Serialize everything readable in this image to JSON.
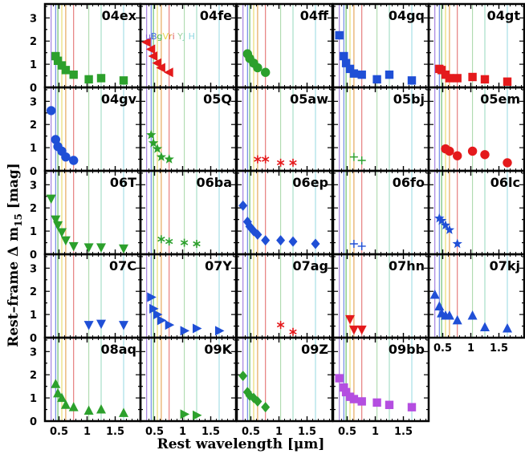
{
  "chart_data": {
    "type": "scatter",
    "title": "",
    "xlabel": "Rest wavelength [μm]",
    "ylabel": "Rest–frame Δ m15 [mag]",
    "ylabel_parts": {
      "main": "Rest–frame Δ m",
      "sub": "15",
      "unit": " [mag]"
    },
    "xlim": [
      0.25,
      1.95
    ],
    "ylim": [
      0,
      3.6
    ],
    "xticks": [
      0.5,
      1.0,
      1.5
    ],
    "xtick_labels": [
      "0.5",
      "1",
      "1.5"
    ],
    "xtick_small": [
      0.4,
      0.6,
      0.7,
      0.8,
      0.9,
      1.1,
      1.2,
      1.3,
      1.4,
      1.6,
      1.7,
      1.8,
      1.9
    ],
    "yticks": [
      0,
      1,
      2,
      3
    ],
    "ytick_labels": [
      "0",
      "1",
      "2",
      "3"
    ],
    "bands": [
      {
        "name": "u",
        "wavelength": 0.36,
        "color": "#8a5cd6"
      },
      {
        "name": "B",
        "wavelength": 0.44,
        "color": "#4b6ae0"
      },
      {
        "name": "g",
        "wavelength": 0.48,
        "color": "#45b04a"
      },
      {
        "name": "V",
        "wavelength": 0.55,
        "color": "#e5d24a"
      },
      {
        "name": "r",
        "wavelength": 0.62,
        "color": "#e0902e"
      },
      {
        "name": "i",
        "wavelength": 0.76,
        "color": "#e05b5b"
      },
      {
        "name": "Y",
        "wavelength": 1.03,
        "color": "#9fd39f"
      },
      {
        "name": "J",
        "wavelength": 1.25,
        "color": "#8fd6b8"
      },
      {
        "name": "H",
        "wavelength": 1.65,
        "color": "#8fd8e0"
      }
    ],
    "band_label_text": "uBgVri   YJ   H",
    "panels": [
      {
        "name": "04ex",
        "color": "#2ca02c",
        "marker": "square",
        "x": [
          0.36,
          0.44,
          0.48,
          0.55,
          0.62,
          0.76,
          1.03,
          1.25,
          1.65
        ],
        "y": [
          null,
          1.35,
          1.15,
          0.95,
          0.75,
          0.55,
          0.35,
          0.4,
          0.3
        ]
      },
      {
        "name": "04fe",
        "color": "#e41a1c",
        "marker": "triangle-left",
        "x": [
          0.36,
          0.44,
          0.48,
          0.55,
          0.62,
          0.76
        ],
        "y": [
          1.95,
          1.65,
          1.35,
          1.05,
          0.85,
          0.65
        ]
      },
      {
        "name": "04ff",
        "color": "#2ca02c",
        "marker": "circle",
        "x": [
          0.44,
          0.48,
          0.55,
          0.62,
          0.76
        ],
        "y": [
          1.45,
          1.25,
          1.05,
          0.85,
          0.65
        ]
      },
      {
        "name": "04gq",
        "color": "#1f4fd6",
        "marker": "square",
        "x": [
          0.36,
          0.44,
          0.48,
          0.55,
          0.62,
          0.76,
          1.03,
          1.25,
          1.65
        ],
        "y": [
          2.25,
          1.35,
          1.05,
          0.8,
          0.6,
          0.55,
          0.35,
          0.55,
          0.3
        ]
      },
      {
        "name": "04gt",
        "color": "#e41a1c",
        "marker": "square",
        "x": [
          0.44,
          0.48,
          0.55,
          0.62,
          0.76,
          1.03,
          1.25,
          1.65
        ],
        "y": [
          0.8,
          0.75,
          0.55,
          0.4,
          0.4,
          0.45,
          0.35,
          0.25
        ]
      },
      {
        "name": "04gv",
        "color": "#1f4fd6",
        "marker": "circle",
        "x": [
          0.36,
          0.44,
          0.48,
          0.55,
          0.62,
          0.76
        ],
        "y": [
          2.6,
          1.35,
          1.05,
          0.85,
          0.6,
          0.45
        ]
      },
      {
        "name": "05Q",
        "color": "#2ca02c",
        "marker": "star",
        "x": [
          0.44,
          0.48,
          0.55,
          0.62,
          0.76
        ],
        "y": [
          1.55,
          1.2,
          0.95,
          0.6,
          0.5
        ]
      },
      {
        "name": "05aw",
        "color": "#e41a1c",
        "marker": "asterisk",
        "x": [
          0.62,
          0.76,
          1.03,
          1.25
        ],
        "y": [
          0.5,
          0.5,
          0.35,
          0.35
        ]
      },
      {
        "name": "05bj",
        "color": "#2ca02c",
        "marker": "plus",
        "x": [
          0.62,
          0.76
        ],
        "y": [
          0.6,
          0.45
        ]
      },
      {
        "name": "05em",
        "color": "#e41a1c",
        "marker": "circle",
        "x": [
          0.55,
          0.62,
          0.76,
          1.03,
          1.25,
          1.65
        ],
        "y": [
          0.95,
          0.85,
          0.65,
          0.85,
          0.7,
          0.35
        ]
      },
      {
        "name": "06T",
        "color": "#2ca02c",
        "marker": "triangle-down",
        "x": [
          0.36,
          0.44,
          0.48,
          0.55,
          0.62,
          0.76,
          1.03,
          1.25,
          1.65
        ],
        "y": [
          2.4,
          1.5,
          1.25,
          0.95,
          0.6,
          0.35,
          0.3,
          0.3,
          0.25
        ]
      },
      {
        "name": "06ba",
        "color": "#2ca02c",
        "marker": "asterisk",
        "x": [
          0.62,
          0.76,
          1.03,
          1.25
        ],
        "y": [
          0.65,
          0.55,
          0.5,
          0.45
        ]
      },
      {
        "name": "06ep",
        "color": "#1f4fd6",
        "marker": "diamond",
        "x": [
          0.36,
          0.44,
          0.48,
          0.55,
          0.62,
          0.76,
          1.03,
          1.25,
          1.65
        ],
        "y": [
          2.1,
          1.4,
          1.2,
          1.0,
          0.85,
          0.6,
          0.6,
          0.55,
          0.45
        ]
      },
      {
        "name": "06fo",
        "color": "#1f4fd6",
        "marker": "plus",
        "x": [
          0.62,
          0.76
        ],
        "y": [
          0.45,
          0.35
        ]
      },
      {
        "name": "06lc",
        "color": "#1f4fd6",
        "marker": "star",
        "x": [
          0.44,
          0.48,
          0.55,
          0.62,
          0.76
        ],
        "y": [
          1.55,
          1.45,
          1.25,
          1.05,
          0.45
        ]
      },
      {
        "name": "07C",
        "color": "#1f4fd6",
        "marker": "triangle-down",
        "x": [
          1.03,
          1.25,
          1.65
        ],
        "y": [
          0.55,
          0.6,
          0.55
        ]
      },
      {
        "name": "07Y",
        "color": "#1f4fd6",
        "marker": "triangle-right",
        "x": [
          0.44,
          0.48,
          0.55,
          0.62,
          0.76,
          1.03,
          1.25,
          1.65
        ],
        "y": [
          1.75,
          1.25,
          1.0,
          0.75,
          0.55,
          0.3,
          0.4,
          0.3
        ]
      },
      {
        "name": "07ag",
        "color": "#e41a1c",
        "marker": "asterisk",
        "x": [
          1.03,
          1.25
        ],
        "y": [
          0.55,
          0.25
        ]
      },
      {
        "name": "07hn",
        "color": "#e41a1c",
        "marker": "triangle-down",
        "x": [
          0.55,
          0.62,
          0.76
        ],
        "y": [
          0.8,
          0.35,
          0.35
        ]
      },
      {
        "name": "07kj",
        "color": "#1f4fd6",
        "marker": "triangle-up",
        "x": [
          0.36,
          0.44,
          0.48,
          0.55,
          0.62,
          0.76,
          1.03,
          1.25,
          1.65
        ],
        "y": [
          1.85,
          1.35,
          1.05,
          0.95,
          0.95,
          0.75,
          0.95,
          0.45,
          0.4
        ]
      },
      {
        "name": "08aq",
        "color": "#2ca02c",
        "marker": "triangle-up",
        "x": [
          0.44,
          0.48,
          0.55,
          0.62,
          0.76,
          1.03,
          1.25,
          1.65
        ],
        "y": [
          1.6,
          1.2,
          1.0,
          0.7,
          0.6,
          0.45,
          0.5,
          0.35
        ]
      },
      {
        "name": "09K",
        "color": "#2ca02c",
        "marker": "triangle-right",
        "x": [
          1.03,
          1.25
        ],
        "y": [
          0.3,
          0.25
        ]
      },
      {
        "name": "09Z",
        "color": "#2ca02c",
        "marker": "diamond",
        "x": [
          0.36,
          0.44,
          0.48,
          0.55,
          0.62,
          0.76
        ],
        "y": [
          1.95,
          1.25,
          1.1,
          1.0,
          0.85,
          0.6
        ]
      },
      {
        "name": "09bb",
        "color": "#b44ee0",
        "marker": "square",
        "x": [
          0.36,
          0.44,
          0.48,
          0.55,
          0.62,
          0.76,
          1.03,
          1.25,
          1.65
        ],
        "y": [
          1.85,
          1.45,
          1.25,
          1.05,
          0.95,
          0.85,
          0.8,
          0.7,
          0.6
        ]
      }
    ],
    "grid": false,
    "legend": "none"
  }
}
